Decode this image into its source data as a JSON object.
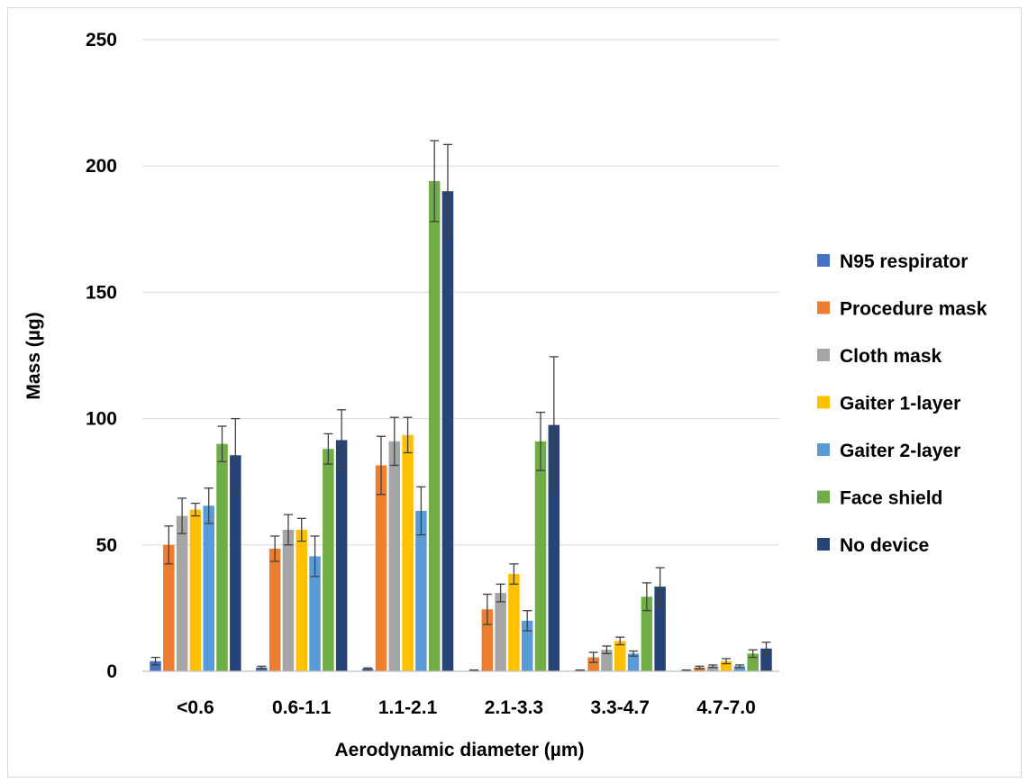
{
  "chart_data": {
    "type": "bar",
    "title": "",
    "xlabel": "Aerodynamic diameter (µm)",
    "ylabel": "Mass (µg)",
    "ylim": [
      0,
      250
    ],
    "yticks": [
      0,
      50,
      100,
      150,
      200,
      250
    ],
    "grid": true,
    "legend_position": "right",
    "categories": [
      "<0.6",
      "0.6-1.1",
      "1.1-2.1",
      "2.1-3.3",
      "3.3-4.7",
      "4.7-7.0"
    ],
    "series": [
      {
        "name": "N95 respirator",
        "color": "#4472C4",
        "values": [
          4,
          1.5,
          1,
          0.3,
          0.3,
          0.3
        ],
        "errors": [
          1.5,
          0.5,
          0.3,
          0.2,
          0.2,
          0.2
        ]
      },
      {
        "name": "Procedure mask",
        "color": "#ED7D31",
        "values": [
          50,
          48.5,
          81.5,
          24.5,
          5.5,
          1.5
        ],
        "errors": [
          7.5,
          5,
          11.5,
          6,
          2,
          0.5
        ]
      },
      {
        "name": "Cloth mask",
        "color": "#A5A5A5",
        "values": [
          61.5,
          56,
          91,
          31,
          8.5,
          2
        ],
        "errors": [
          7,
          6,
          9.5,
          3.5,
          1.5,
          0.5
        ]
      },
      {
        "name": "Gaiter 1-layer",
        "color": "#FFC000",
        "values": [
          64,
          56,
          93.5,
          38.5,
          12,
          4
        ],
        "errors": [
          2.5,
          4.5,
          7,
          4,
          1.5,
          1
        ]
      },
      {
        "name": "Gaiter 2-layer",
        "color": "#5B9BD5",
        "values": [
          65.5,
          45.5,
          63.5,
          20,
          7,
          2
        ],
        "errors": [
          7,
          8,
          9.5,
          4,
          1,
          0.5
        ]
      },
      {
        "name": "Face shield",
        "color": "#70AD47",
        "values": [
          90,
          88,
          194,
          91,
          29.5,
          7
        ],
        "errors": [
          7,
          6,
          16,
          11.5,
          5.5,
          1.5
        ]
      },
      {
        "name": "No device",
        "color": "#264478",
        "values": [
          85.5,
          91.5,
          190,
          97.5,
          33.5,
          9
        ],
        "errors": [
          14.5,
          12,
          18.5,
          27,
          7.5,
          2.5
        ]
      }
    ]
  }
}
